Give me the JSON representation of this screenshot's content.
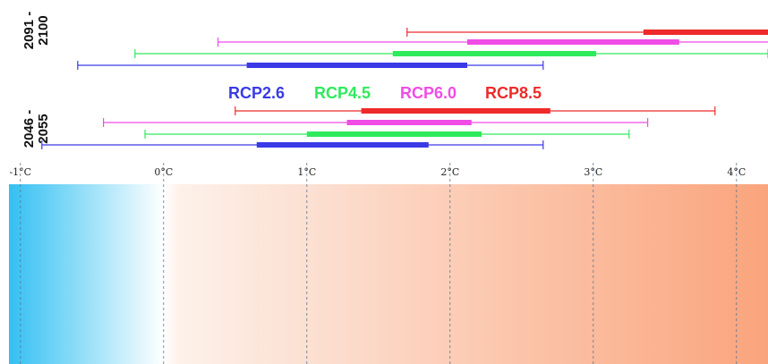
{
  "chart_data": {
    "type": "range",
    "x_unit": "°C",
    "xlim": [
      -1.08,
      4.22
    ],
    "ticks": [
      {
        "value": -1,
        "label": "-1°C"
      },
      {
        "value": 0,
        "label": "0°C"
      },
      {
        "value": 1,
        "label": "1°C"
      },
      {
        "value": 2,
        "label": "2°C"
      },
      {
        "value": 3,
        "label": "3°C"
      },
      {
        "value": 4,
        "label": "4°C"
      }
    ],
    "legend_placement": "between-groups",
    "scenarios": [
      {
        "name": "RCP2.6",
        "color": "#3a3ae6"
      },
      {
        "name": "RCP4.5",
        "color": "#2eea5c"
      },
      {
        "name": "RCP6.0",
        "color": "#f04ce6"
      },
      {
        "name": "RCP8.5",
        "color": "#ee2a2a"
      }
    ],
    "periods": [
      {
        "label_line1": "2091 -",
        "label_line2": "2100",
        "ranges": [
          {
            "scenario": "RCP8.5",
            "low": 1.7,
            "likely_low": 3.35,
            "likely_high": 4.25,
            "high": 4.25
          },
          {
            "scenario": "RCP6.0",
            "low": 0.38,
            "likely_low": 2.12,
            "likely_high": 3.6,
            "high": 4.25
          },
          {
            "scenario": "RCP4.5",
            "low": -0.2,
            "likely_low": 1.6,
            "likely_high": 3.02,
            "high": 4.22
          },
          {
            "scenario": "RCP2.6",
            "low": -0.6,
            "likely_low": 0.58,
            "likely_high": 2.12,
            "high": 2.65
          }
        ]
      },
      {
        "label_line1": "2046 -",
        "label_line2": "2055",
        "ranges": [
          {
            "scenario": "RCP8.5",
            "low": 0.5,
            "likely_low": 1.38,
            "likely_high": 2.7,
            "high": 3.85
          },
          {
            "scenario": "RCP6.0",
            "low": -0.42,
            "likely_low": 1.28,
            "likely_high": 2.15,
            "high": 3.38
          },
          {
            "scenario": "RCP4.5",
            "low": -0.13,
            "likely_low": 1.0,
            "likely_high": 2.22,
            "high": 3.25
          },
          {
            "scenario": "RCP2.6",
            "low": -0.85,
            "likely_low": 0.65,
            "likely_high": 1.85,
            "high": 2.65
          }
        ]
      }
    ],
    "colors": {
      "cold": "#33c0f2",
      "neutral": "#ffffff",
      "warm_light": "#fdf1ea",
      "warm_dark": "#faa47c",
      "gridline": "#5a7690"
    }
  }
}
